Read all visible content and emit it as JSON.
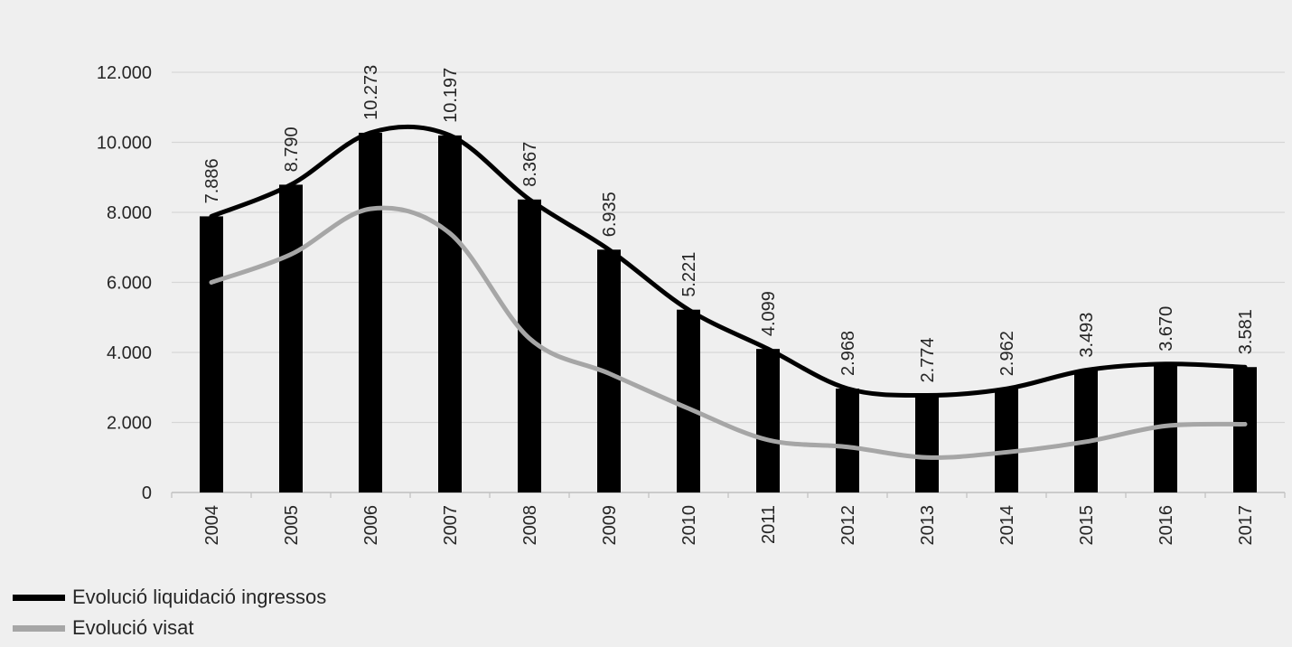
{
  "chart_data": {
    "type": "bar",
    "categories": [
      "2004",
      "2005",
      "2006",
      "2007",
      "2008",
      "2009",
      "2010",
      "2011",
      "2012",
      "2013",
      "2014",
      "2015",
      "2016",
      "2017"
    ],
    "series": [
      {
        "name": "Evolució liquidació ingressos",
        "type": "bar+line",
        "values": [
          7886,
          8790,
          10273,
          10197,
          8367,
          6935,
          5221,
          4099,
          2968,
          2774,
          2962,
          3493,
          3670,
          3581
        ],
        "labels": [
          "7.886",
          "8.790",
          "10.273",
          "10.197",
          "8.367",
          "6.935",
          "5.221",
          "4.099",
          "2.968",
          "2.774",
          "2.962",
          "3.493",
          "3.670",
          "3.581"
        ],
        "color": "#000000"
      },
      {
        "name": "Evolució visat",
        "type": "line",
        "values": [
          6000,
          6800,
          8100,
          7400,
          4400,
          3400,
          2400,
          1500,
          1300,
          1000,
          1150,
          1450,
          1900,
          1950
        ],
        "color": "#a6a6a6"
      }
    ],
    "yticks": [
      "0",
      "2.000",
      "4.000",
      "6.000",
      "8.000",
      "10.000",
      "12.000"
    ],
    "ylim": [
      0,
      12000
    ],
    "grid": true,
    "legend_position": "bottom-left",
    "title": "",
    "xlabel": "",
    "ylabel": ""
  }
}
